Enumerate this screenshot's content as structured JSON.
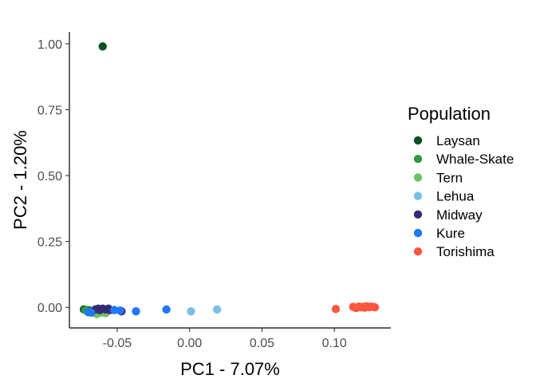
{
  "chart_data": {
    "type": "scatter",
    "title": "",
    "xlabel": "PC1 - 7.07%",
    "ylabel": "PC2 - 1.20%",
    "xlim": [
      -0.083,
      0.139
    ],
    "ylim": [
      -0.078,
      1.045
    ],
    "x_ticks": [
      -0.05,
      0.0,
      0.05,
      0.1
    ],
    "x_tick_labels": [
      "-0.05",
      "0.00",
      "0.05",
      "0.10"
    ],
    "y_ticks": [
      0.0,
      0.25,
      0.5,
      0.75,
      1.0
    ],
    "y_tick_labels": [
      "0.00",
      "0.25",
      "0.50",
      "0.75",
      "1.00"
    ],
    "grid": false,
    "legend": {
      "title": "Population",
      "position": "right"
    },
    "series": [
      {
        "name": "Laysan",
        "color": "#0b5321",
        "points": [
          [
            -0.06,
            0.99
          ],
          [
            -0.073,
            -0.008
          ],
          [
            -0.071,
            -0.01
          ],
          [
            -0.069,
            -0.012
          ]
        ]
      },
      {
        "name": "Whale-Skate",
        "color": "#2e9944",
        "points": [
          [
            -0.072,
            -0.01
          ],
          [
            -0.068,
            -0.015
          ],
          [
            -0.065,
            -0.01
          ],
          [
            -0.062,
            -0.018
          ],
          [
            -0.06,
            -0.012
          ],
          [
            -0.058,
            -0.015
          ]
        ]
      },
      {
        "name": "Tern",
        "color": "#6cc165",
        "points": [
          [
            -0.07,
            -0.018
          ],
          [
            -0.066,
            -0.02
          ],
          [
            -0.064,
            -0.025
          ],
          [
            -0.061,
            -0.02
          ],
          [
            -0.058,
            -0.022
          ]
        ]
      },
      {
        "name": "Lehua",
        "color": "#78c0e4",
        "points": [
          [
            0.001,
            -0.015
          ],
          [
            0.019,
            -0.008
          ]
        ]
      },
      {
        "name": "Midway",
        "color": "#352b77",
        "points": [
          [
            -0.065,
            -0.008
          ],
          [
            -0.063,
            -0.005
          ],
          [
            -0.062,
            -0.01
          ],
          [
            -0.06,
            -0.005
          ],
          [
            -0.058,
            -0.008
          ],
          [
            -0.056,
            -0.005
          ],
          [
            -0.055,
            -0.01
          ],
          [
            -0.047,
            -0.015
          ]
        ]
      },
      {
        "name": "Kure",
        "color": "#1f78f4",
        "points": [
          [
            -0.07,
            -0.018
          ],
          [
            -0.068,
            -0.02
          ],
          [
            -0.052,
            -0.01
          ],
          [
            -0.048,
            -0.012
          ],
          [
            -0.037,
            -0.015
          ],
          [
            -0.016,
            -0.008
          ]
        ]
      },
      {
        "name": "Torishima",
        "color": "#ff5640",
        "points": [
          [
            0.101,
            -0.006
          ],
          [
            0.113,
            0.002
          ],
          [
            0.115,
            -0.002
          ],
          [
            0.117,
            0.003
          ],
          [
            0.118,
            0.0
          ],
          [
            0.12,
            0.002
          ],
          [
            0.121,
            -0.001
          ],
          [
            0.122,
            0.004
          ],
          [
            0.124,
            0.001
          ],
          [
            0.125,
            0.003
          ],
          [
            0.127,
            0.002
          ],
          [
            0.128,
            0.0
          ]
        ]
      }
    ]
  }
}
